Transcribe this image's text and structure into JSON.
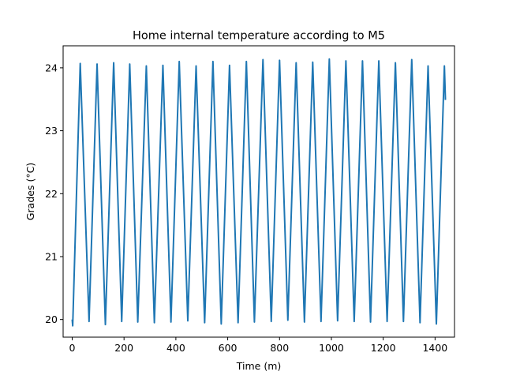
{
  "chart_data": {
    "type": "line",
    "title": "Home internal temperature according to M5",
    "xlabel": "Time (m)",
    "ylabel": "Grades (°C)",
    "xlim": [
      -35,
      1475
    ],
    "ylim": [
      19.72,
      24.35
    ],
    "xticks": [
      0,
      200,
      400,
      600,
      800,
      1000,
      1200,
      1400
    ],
    "yticks": [
      20,
      21,
      22,
      23,
      24
    ],
    "grid": false,
    "series": [
      {
        "color": "#1f77b4",
        "x": [
          0,
          2,
          31,
          65,
          96,
          128,
          160,
          191,
          222,
          253,
          286,
          317,
          350,
          381,
          413,
          446,
          478,
          511,
          543,
          575,
          607,
          640,
          672,
          703,
          736,
          768,
          800,
          832,
          864,
          896,
          928,
          960,
          992,
          1024,
          1056,
          1088,
          1120,
          1151,
          1183,
          1215,
          1247,
          1278,
          1310,
          1342,
          1373,
          1405,
          1436,
          1440
        ],
        "y": [
          20.0,
          19.9,
          24.07,
          19.97,
          24.06,
          19.92,
          24.08,
          19.97,
          24.06,
          19.96,
          24.03,
          19.95,
          24.04,
          19.96,
          24.1,
          19.98,
          24.03,
          19.95,
          24.1,
          19.93,
          24.04,
          19.95,
          24.1,
          19.96,
          24.13,
          19.97,
          24.12,
          19.99,
          24.08,
          19.96,
          24.09,
          19.97,
          24.14,
          19.98,
          24.11,
          19.97,
          24.11,
          19.96,
          24.11,
          19.97,
          24.08,
          19.97,
          24.13,
          19.95,
          24.03,
          19.93,
          24.03,
          23.49
        ]
      }
    ]
  }
}
